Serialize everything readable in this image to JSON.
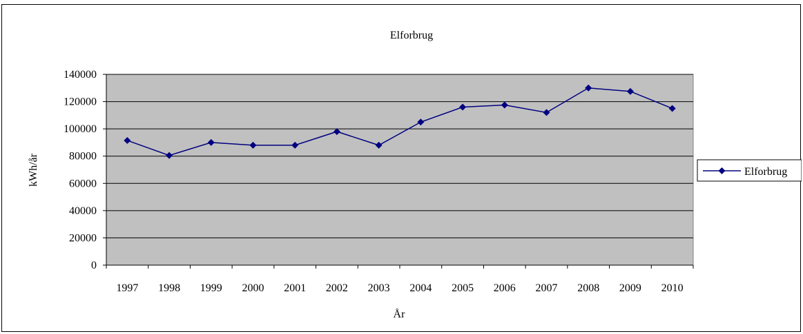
{
  "chart_data": {
    "type": "line",
    "title": "Elforbrug",
    "xlabel": "År",
    "ylabel": "kWh/år",
    "categories": [
      "1997",
      "1998",
      "1999",
      "2000",
      "2001",
      "2002",
      "2003",
      "2004",
      "2005",
      "2006",
      "2007",
      "2008",
      "2009",
      "2010"
    ],
    "series": [
      {
        "name": "Elforbrug",
        "values": [
          91500,
          80500,
          90000,
          88000,
          88000,
          98000,
          88000,
          105000,
          116000,
          117500,
          112000,
          130000,
          127500,
          115000
        ]
      }
    ],
    "ylim": [
      0,
      140000
    ],
    "yticks": [
      "0",
      "20000",
      "40000",
      "60000",
      "80000",
      "100000",
      "120000",
      "140000"
    ],
    "grid": true,
    "legend": "right",
    "colors": {
      "series": "#000080",
      "plot_background": "#c0c0c0",
      "gridline": "#000000"
    }
  }
}
